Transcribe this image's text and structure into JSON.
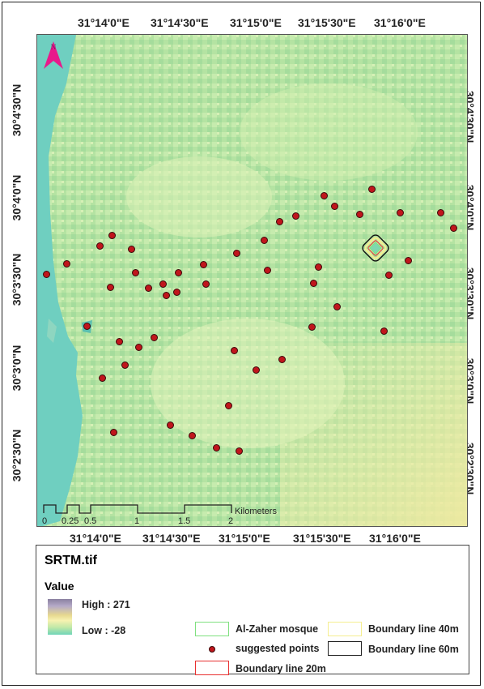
{
  "map": {
    "north_label": "N",
    "top_lon_labels": [
      "31°14'0\"E",
      "31°14'30\"E",
      "31°15'0\"E",
      "31°15'30\"E",
      "31°16'0\"E"
    ],
    "bottom_lon_labels": [
      "31°14'0\"E",
      "31°14'30\"E",
      "31°15'0\"E",
      "31°15'30\"E",
      "31°16'0\"E"
    ],
    "left_lat_labels": [
      "30°4'30\"N",
      "30°4'0\"N",
      "30°3'30\"N",
      "30°3'0\"N",
      "30°2'30\"N"
    ],
    "right_lat_labels": [
      "30°4'30\"N",
      "30°4'0\"N",
      "30°3'30\"N",
      "30°3'0\"N",
      "30°2'30\"N"
    ],
    "scale_bar": {
      "labels": [
        "0",
        "0.25",
        "0.5",
        "1",
        "1.5",
        "2"
      ],
      "unit": "Kilometers"
    },
    "colors": {
      "water": "#6fcfc0",
      "terrain_base": "#b6e5a4",
      "terrain_high": "#f3f0b0",
      "points": "#c0161c",
      "north_arrow": "#e8198b"
    }
  },
  "legend": {
    "title": "SRTM.tif",
    "value_label": "Value",
    "high_label": "High : 271",
    "low_label": "Low : -28",
    "items": [
      {
        "label": "Al-Zaher mosque",
        "color": "#7fe07f",
        "icon": "green-outline-box"
      },
      {
        "label": "suggested points",
        "color": "#c0161c",
        "icon": "red-dot"
      },
      {
        "label": "Boundary line 20m",
        "color": "#e83030",
        "icon": "red-outline-box"
      },
      {
        "label": "Boundary line 40m",
        "color": "#f5ee90",
        "icon": "yellow-outline-box"
      },
      {
        "label": "Boundary line 60m",
        "color": "#222222",
        "icon": "black-outline-box"
      }
    ]
  }
}
